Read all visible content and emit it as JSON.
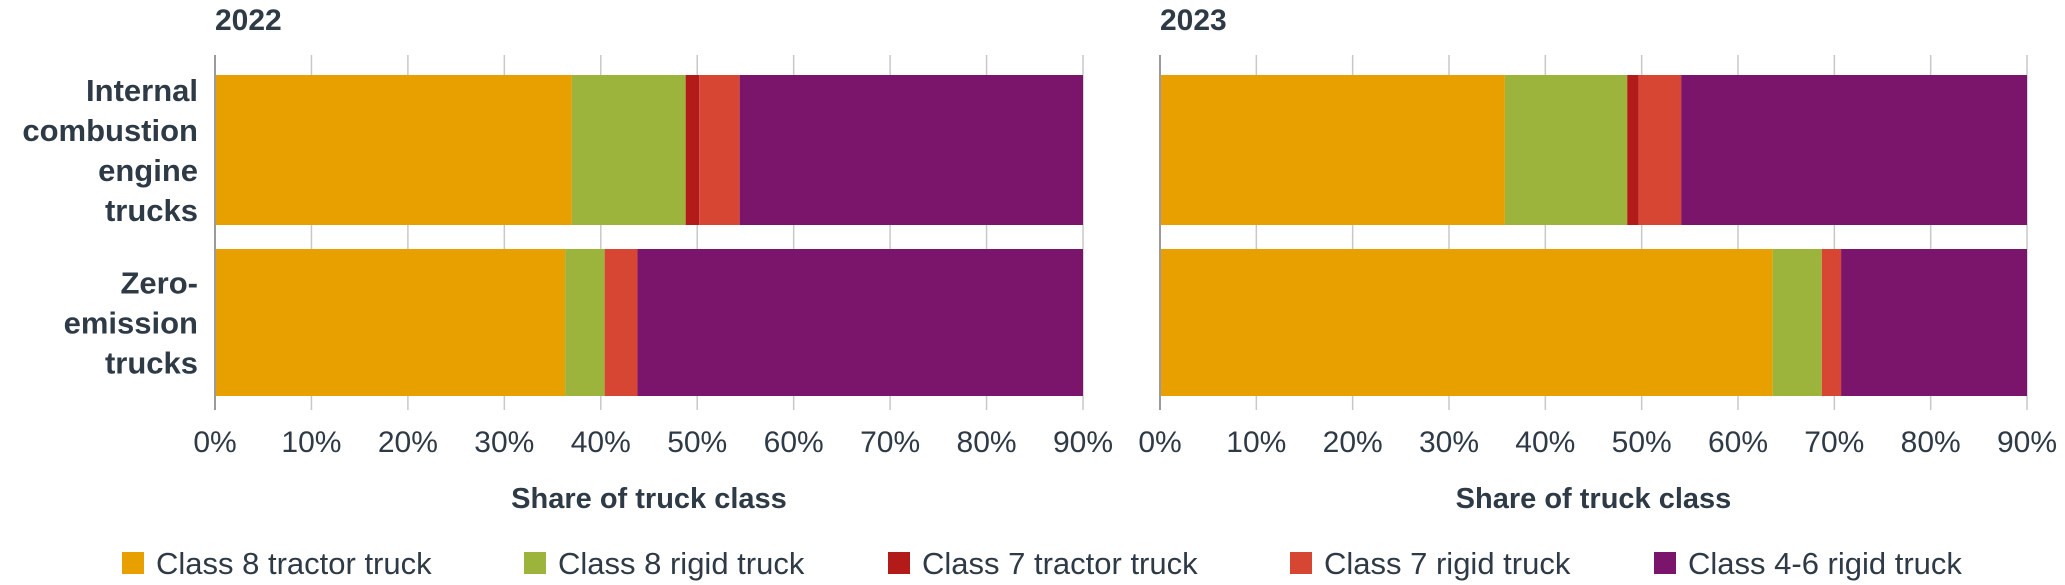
{
  "chart_data": {
    "type": "bar",
    "orientation": "horizontal",
    "stacked": true,
    "xlim": [
      0,
      90
    ],
    "xticks": [
      "0%",
      "10%",
      "20%",
      "30%",
      "40%",
      "50%",
      "60%",
      "70%",
      "80%",
      "90%"
    ],
    "xlabel": "Share of truck class",
    "categories": [
      "Internal combustion engine trucks",
      "Zero-emission trucks"
    ],
    "category_lines": [
      [
        "Internal",
        "combustion",
        "engine",
        "trucks"
      ],
      [
        "Zero-",
        "emission",
        "trucks"
      ]
    ],
    "legend_position": "bottom",
    "series": [
      {
        "name": "Class 8 tractor truck",
        "color": "#E89F00"
      },
      {
        "name": "Class 8 rigid truck",
        "color": "#9DB43C"
      },
      {
        "name": "Class 7 tractor truck",
        "color": "#B31B1B"
      },
      {
        "name": "Class 7 rigid truck",
        "color": "#D64632"
      },
      {
        "name": "Class 4-6 rigid truck",
        "color": "#7B146B"
      }
    ],
    "panels": [
      {
        "title": "2022",
        "values": {
          "Internal combustion engine trucks": [
            37.0,
            11.8,
            1.4,
            4.2,
            35.6
          ],
          "Zero-emission trucks": [
            36.3,
            4.1,
            0.0,
            3.4,
            46.2
          ]
        }
      },
      {
        "title": "2023",
        "values": {
          "Internal combustion engine trucks": [
            35.8,
            12.7,
            1.2,
            4.4,
            35.9
          ],
          "Zero-emission trucks": [
            63.6,
            5.1,
            0.0,
            2.0,
            19.3
          ]
        }
      }
    ]
  }
}
